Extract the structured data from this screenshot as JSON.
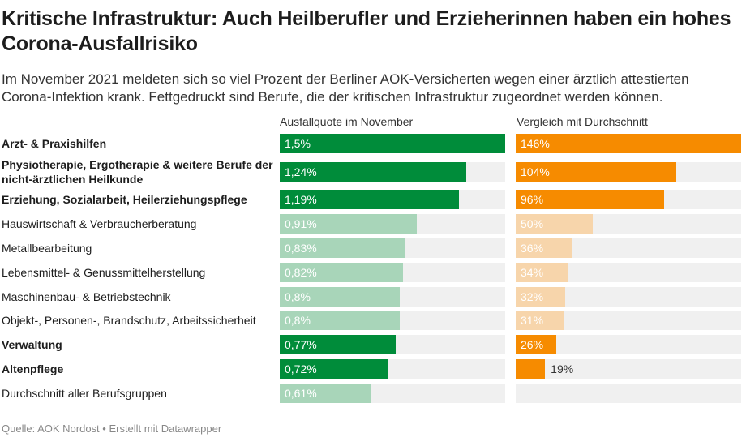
{
  "title": "Kritische Infrastruktur: Auch Heilberufler und Erzieherinnen haben ein hohes Corona-Ausfallrisiko",
  "subtitle": "Im November 2021 meldeten sich so viel Prozent der Berliner AOK-Versicherten wegen einer ärztlich attestierten Corona-Infektion krank. Fettgedruckt sind Berufe, die der kritischen Infrastruktur zugeordnet werden können.",
  "source": "Quelle: AOK Nordost • Erstellt mit Datawrapper",
  "colors": {
    "green_strong": "#008c3a",
    "green_light": "#a8d5b9",
    "orange_strong": "#f68b00",
    "orange_light": "#f7d5ab",
    "track": "#f0f0f0"
  },
  "chart_data": {
    "type": "bar",
    "orientation": "horizontal",
    "columns": [
      "Ausfallquote im November",
      "Vergleich mit Durchschnitt"
    ],
    "rows": [
      {
        "label": "Arzt- & Praxishilfen",
        "kritis": true,
        "quote": 1.5,
        "quote_label": "1,5%",
        "vergleich": 146,
        "vergleich_label": "146%"
      },
      {
        "label": "Physiotherapie, Ergotherapie & weitere Berufe der nicht-ärztlichen Heilkunde",
        "kritis": true,
        "quote": 1.24,
        "quote_label": "1,24%",
        "vergleich": 104,
        "vergleich_label": "104%"
      },
      {
        "label": "Erziehung, Sozialarbeit, Heilerziehungspflege",
        "kritis": true,
        "quote": 1.19,
        "quote_label": "1,19%",
        "vergleich": 96,
        "vergleich_label": "96%"
      },
      {
        "label": "Hauswirtschaft & Verbraucherberatung",
        "kritis": false,
        "quote": 0.91,
        "quote_label": "0,91%",
        "vergleich": 50,
        "vergleich_label": "50%"
      },
      {
        "label": "Metallbearbeitung",
        "kritis": false,
        "quote": 0.83,
        "quote_label": "0,83%",
        "vergleich": 36,
        "vergleich_label": "36%"
      },
      {
        "label": "Lebensmittel- & Genussmittelherstellung",
        "kritis": false,
        "quote": 0.82,
        "quote_label": "0,82%",
        "vergleich": 34,
        "vergleich_label": "34%"
      },
      {
        "label": "Maschinenbau- & Betriebstechnik",
        "kritis": false,
        "quote": 0.8,
        "quote_label": "0,8%",
        "vergleich": 32,
        "vergleich_label": "32%"
      },
      {
        "label": "Objekt-, Personen-, Brandschutz, Arbeitssicherheit",
        "kritis": false,
        "quote": 0.8,
        "quote_label": "0,8%",
        "vergleich": 31,
        "vergleich_label": "31%"
      },
      {
        "label": "Verwaltung",
        "kritis": true,
        "quote": 0.77,
        "quote_label": "0,77%",
        "vergleich": 26,
        "vergleich_label": "26%"
      },
      {
        "label": "Altenpflege",
        "kritis": true,
        "quote": 0.72,
        "quote_label": "0,72%",
        "vergleich": 19,
        "vergleich_label": "19%"
      },
      {
        "label": "Durchschnitt aller Berufsgruppen",
        "kritis": false,
        "quote": 0.61,
        "quote_label": "0,61%",
        "vergleich": null,
        "vergleich_label": ""
      }
    ]
  }
}
